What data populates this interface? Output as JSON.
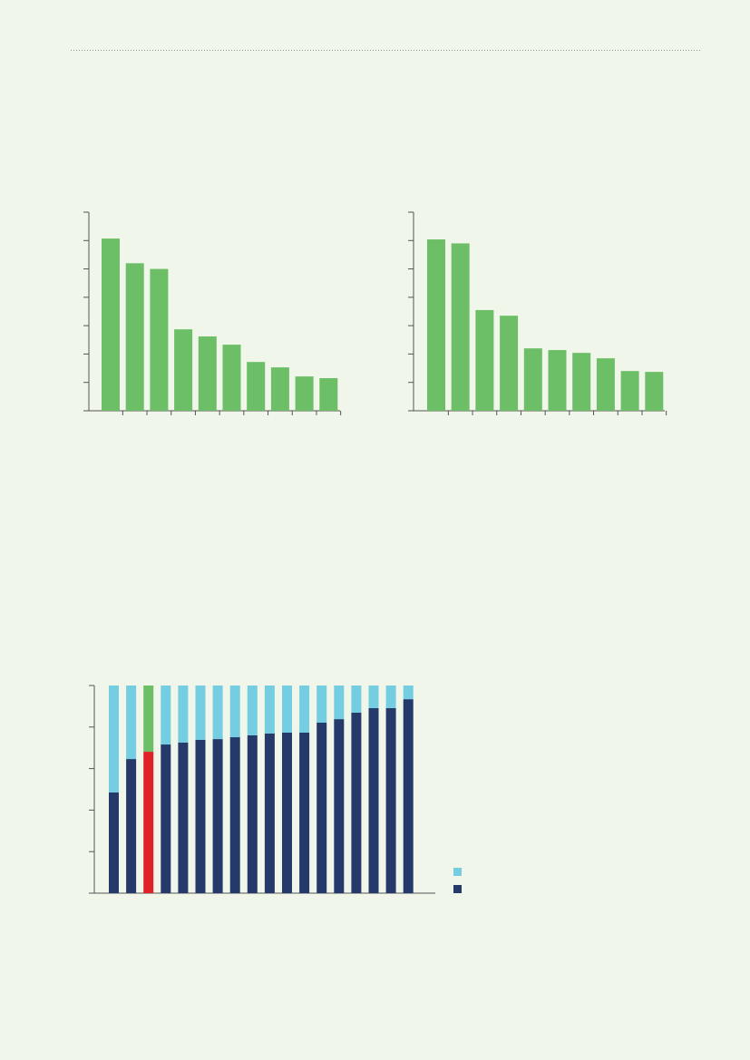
{
  "chart_data": [
    {
      "type": "bar",
      "color": "#6dbf67",
      "ylim": [
        0,
        7
      ],
      "yticks": [
        0,
        1,
        2,
        3,
        4,
        5,
        6,
        7
      ],
      "values": [
        6.07,
        5.2,
        5.0,
        2.87,
        2.62,
        2.33,
        1.72,
        1.53,
        1.21,
        1.15
      ]
    },
    {
      "type": "bar",
      "color": "#6dbf67",
      "ylim": [
        0,
        7
      ],
      "yticks": [
        0,
        1,
        2,
        3,
        4,
        5,
        6,
        7
      ],
      "values": [
        6.04,
        5.9,
        3.55,
        3.35,
        2.2,
        2.14,
        2.04,
        1.85,
        1.4,
        1.37
      ]
    },
    {
      "type": "stacked_bar",
      "ylim": [
        0,
        100
      ],
      "yticks": [
        0,
        20,
        40,
        60,
        80,
        100
      ],
      "series": [
        {
          "color": "#253a6b",
          "colors": [
            "#253a6b",
            "#253a6b",
            "#e02127",
            "#253a6b",
            "#253a6b",
            "#253a6b",
            "#253a6b",
            "#253a6b",
            "#253a6b",
            "#253a6b",
            "#253a6b",
            "#253a6b",
            "#253a6b",
            "#253a6b",
            "#253a6b",
            "#253a6b",
            "#253a6b",
            "#253a6b"
          ],
          "values": [
            48.5,
            64.6,
            68.1,
            71.6,
            72.5,
            73.8,
            74.2,
            75.1,
            76,
            76.9,
            77.3,
            77.3,
            82.1,
            83.8,
            86.9,
            89.1,
            89.1,
            93.4
          ]
        },
        {
          "color": "#74cde0",
          "colors": [
            "#74cde0",
            "#74cde0",
            "#6dbf67",
            "#74cde0",
            "#74cde0",
            "#74cde0",
            "#74cde0",
            "#74cde0",
            "#74cde0",
            "#74cde0",
            "#74cde0",
            "#74cde0",
            "#74cde0",
            "#74cde0",
            "#74cde0",
            "#74cde0",
            "#74cde0",
            "#74cde0"
          ],
          "values": [
            51.5,
            35.4,
            31.9,
            28.4,
            27.5,
            26.2,
            25.8,
            24.9,
            24,
            23.1,
            22.7,
            22.7,
            17.9,
            16.2,
            13.1,
            10.9,
            10.9,
            6.6
          ]
        }
      ]
    }
  ]
}
